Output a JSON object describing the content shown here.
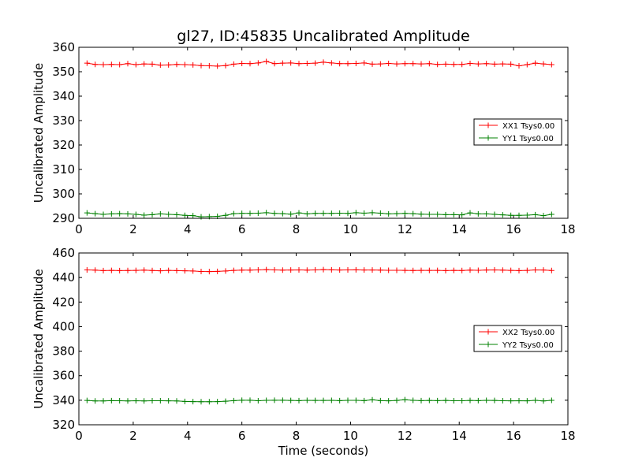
{
  "chart_data": [
    {
      "type": "line",
      "title": "gl27, ID:45835 Uncalibrated Amplitude",
      "xlabel": "",
      "ylabel": "Uncalibrated Amplitude",
      "xlim": [
        0,
        18
      ],
      "ylim": [
        290,
        360
      ],
      "xticks": [
        "0",
        "2",
        "4",
        "6",
        "8",
        "10",
        "12",
        "14",
        "16",
        "18"
      ],
      "yticks": [
        "290",
        "300",
        "310",
        "320",
        "330",
        "340",
        "350",
        "360"
      ],
      "grid": false,
      "legend_position": "center-right",
      "x": [
        0.3,
        0.6,
        0.9,
        1.2,
        1.5,
        1.8,
        2.1,
        2.4,
        2.7,
        3.0,
        3.3,
        3.6,
        3.9,
        4.2,
        4.5,
        4.8,
        5.1,
        5.4,
        5.7,
        6.0,
        6.3,
        6.6,
        6.9,
        7.2,
        7.5,
        7.8,
        8.1,
        8.4,
        8.7,
        9.0,
        9.3,
        9.6,
        9.9,
        10.2,
        10.5,
        10.8,
        11.1,
        11.4,
        11.7,
        12.0,
        12.3,
        12.6,
        12.9,
        13.2,
        13.5,
        13.8,
        14.1,
        14.4,
        14.7,
        15.0,
        15.3,
        15.6,
        15.9,
        16.2,
        16.5,
        16.8,
        17.1,
        17.4
      ],
      "series": [
        {
          "name": "XX1 Tsys0.00",
          "color": "#ff0000",
          "values": [
            353.5,
            353.0,
            352.9,
            353.0,
            352.9,
            353.3,
            352.9,
            353.2,
            353.1,
            352.7,
            352.8,
            353.0,
            352.9,
            352.8,
            352.5,
            352.4,
            352.3,
            352.5,
            353.1,
            353.4,
            353.3,
            353.6,
            354.2,
            353.3,
            353.5,
            353.6,
            353.3,
            353.4,
            353.5,
            353.9,
            353.6,
            353.3,
            353.3,
            353.4,
            353.6,
            353.1,
            353.2,
            353.4,
            353.2,
            353.3,
            353.3,
            353.2,
            353.3,
            353.0,
            353.1,
            353.0,
            353.0,
            353.4,
            353.2,
            353.3,
            353.1,
            353.2,
            353.1,
            352.4,
            352.9,
            353.5,
            353.2,
            352.9
          ]
        },
        {
          "name": "YY1 Tsys0.00",
          "color": "#008000",
          "values": [
            292.2,
            291.9,
            291.6,
            291.8,
            291.9,
            291.8,
            291.6,
            291.3,
            291.5,
            291.8,
            291.6,
            291.5,
            291.2,
            291.1,
            290.6,
            290.7,
            290.8,
            291.2,
            291.9,
            292.0,
            292.0,
            292.1,
            292.3,
            292.0,
            291.9,
            291.7,
            292.2,
            291.8,
            292.0,
            292.0,
            292.0,
            292.1,
            292.0,
            292.3,
            292.1,
            292.3,
            292.1,
            291.8,
            291.9,
            292.0,
            291.9,
            291.7,
            291.6,
            291.6,
            291.5,
            291.5,
            291.4,
            292.2,
            291.8,
            291.8,
            291.6,
            291.4,
            291.2,
            291.2,
            291.3,
            291.5,
            291.1,
            291.6
          ]
        }
      ]
    },
    {
      "type": "line",
      "title": "",
      "xlabel": "Time (seconds)",
      "ylabel": "Uncalibrated Amplitude",
      "xlim": [
        0,
        18
      ],
      "ylim": [
        320,
        460
      ],
      "xticks": [
        "0",
        "2",
        "4",
        "6",
        "8",
        "10",
        "12",
        "14",
        "16",
        "18"
      ],
      "yticks": [
        "320",
        "340",
        "360",
        "380",
        "400",
        "420",
        "440",
        "460"
      ],
      "grid": false,
      "legend_position": "center-right",
      "x": [
        0.3,
        0.6,
        0.9,
        1.2,
        1.5,
        1.8,
        2.1,
        2.4,
        2.7,
        3.0,
        3.3,
        3.6,
        3.9,
        4.2,
        4.5,
        4.8,
        5.1,
        5.4,
        5.7,
        6.0,
        6.3,
        6.6,
        6.9,
        7.2,
        7.5,
        7.8,
        8.1,
        8.4,
        8.7,
        9.0,
        9.3,
        9.6,
        9.9,
        10.2,
        10.5,
        10.8,
        11.1,
        11.4,
        11.7,
        12.0,
        12.3,
        12.6,
        12.9,
        13.2,
        13.5,
        13.8,
        14.1,
        14.4,
        14.7,
        15.0,
        15.3,
        15.6,
        15.9,
        16.2,
        16.5,
        16.8,
        17.1,
        17.4
      ],
      "series": [
        {
          "name": "XX2 Tsys0.00",
          "color": "#ff0000",
          "values": [
            446.2,
            446.0,
            445.6,
            445.8,
            445.6,
            445.7,
            445.8,
            446.0,
            445.7,
            445.5,
            445.8,
            445.6,
            445.5,
            445.3,
            444.9,
            444.8,
            445.0,
            445.3,
            445.8,
            446.0,
            446.0,
            446.2,
            446.4,
            446.2,
            446.0,
            446.1,
            446.2,
            446.0,
            446.2,
            446.4,
            446.3,
            446.1,
            446.2,
            446.3,
            446.1,
            446.1,
            446.0,
            445.9,
            445.9,
            445.8,
            445.7,
            445.8,
            445.8,
            445.8,
            445.6,
            445.8,
            445.7,
            446.0,
            445.9,
            446.1,
            446.2,
            446.0,
            445.8,
            445.6,
            445.8,
            446.2,
            446.1,
            445.7
          ]
        },
        {
          "name": "YY2 Tsys0.00",
          "color": "#008000",
          "values": [
            339.8,
            339.4,
            339.4,
            339.7,
            339.6,
            339.4,
            339.6,
            339.4,
            339.6,
            339.6,
            339.5,
            339.4,
            339.0,
            338.9,
            338.8,
            338.8,
            338.9,
            339.2,
            339.7,
            340.0,
            340.0,
            339.6,
            339.9,
            340.0,
            340.0,
            339.8,
            339.7,
            339.9,
            339.8,
            339.8,
            339.9,
            339.7,
            339.9,
            339.9,
            339.7,
            340.4,
            339.7,
            339.5,
            339.8,
            340.5,
            339.9,
            339.7,
            339.8,
            339.7,
            339.8,
            339.6,
            339.6,
            339.8,
            339.7,
            339.9,
            339.8,
            339.6,
            339.5,
            339.6,
            339.5,
            339.9,
            339.4,
            339.9
          ]
        }
      ]
    }
  ]
}
